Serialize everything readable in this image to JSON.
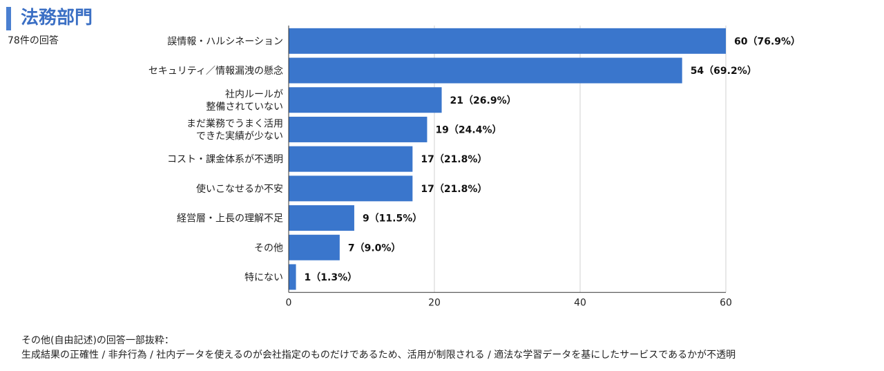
{
  "header": {
    "title": "法務部門",
    "response_count": "78件の回答"
  },
  "colors": {
    "bar": "#3a76cc",
    "title": "#3b6fc4",
    "accent_bar": "#4a7fd0",
    "grid": "#d0d0d0",
    "axis": "#333333"
  },
  "chart_data": {
    "type": "bar",
    "orientation": "horizontal",
    "title": "法務部門",
    "subtitle": "78件の回答",
    "categories": [
      [
        "誤情報・ハルシネーション"
      ],
      [
        "セキュリティ／情報漏洩の懸念"
      ],
      [
        "社内ルールが",
        "整備されていない"
      ],
      [
        "まだ業務でうまく活用",
        "できた実績が少ない"
      ],
      [
        "コスト・課金体系が不透明"
      ],
      [
        "使いこなせるか不安"
      ],
      [
        "経営層・上長の理解不足"
      ],
      [
        "その他"
      ],
      [
        "特にない"
      ]
    ],
    "values": [
      60,
      54,
      21,
      19,
      17,
      17,
      9,
      7,
      1
    ],
    "data_labels": [
      "60（76.9%）",
      "54（69.2%）",
      "21（26.9%）",
      "19（24.4%）",
      "17（21.8%）",
      "17（21.8%）",
      "9（11.5%）",
      "7（9.0%）",
      "1（1.3%）"
    ],
    "x_ticks": [
      0,
      20,
      40,
      60
    ],
    "xlim": [
      0,
      60
    ],
    "xlabel": "",
    "ylabel": "",
    "grid": true,
    "legend": "none"
  },
  "notes": {
    "heading": "その他(自由記述)の回答一部抜粋：",
    "body": "生成結果の正確性 / 非弁行為 / 社内データを使えるのが会社指定のものだけであるため、活用が制限される / 適法な学習データを基にしたサービスであるかが不透明"
  }
}
